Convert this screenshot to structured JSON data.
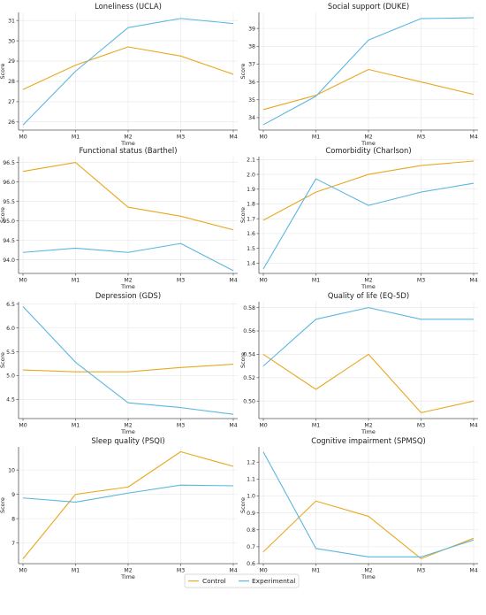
{
  "chart_data": [
    {
      "type": "line",
      "title": "Loneliness (UCLA)",
      "xlabel": "Time",
      "ylabel": "Score",
      "categories": [
        "M0",
        "M1",
        "M2",
        "M3",
        "M4"
      ],
      "ylim": [
        25.6,
        31.4
      ],
      "yticks": [
        26,
        27,
        28,
        29,
        30,
        31
      ],
      "tick_labels": [
        "26",
        "27",
        "28",
        "29",
        "30",
        "31"
      ],
      "series": [
        {
          "name": "Control",
          "values": [
            27.6,
            28.8,
            29.7,
            29.25,
            28.35
          ]
        },
        {
          "name": "Experimental",
          "values": [
            25.85,
            28.5,
            30.65,
            31.1,
            30.85
          ]
        }
      ]
    },
    {
      "type": "line",
      "title": "Social support (DUKE)",
      "xlabel": "Time",
      "ylabel": "Score",
      "categories": [
        "M0",
        "M1",
        "M2",
        "M3",
        "M4"
      ],
      "ylim": [
        33.3,
        39.9
      ],
      "yticks": [
        34,
        35,
        36,
        37,
        38,
        39
      ],
      "tick_labels": [
        "34",
        "35",
        "36",
        "37",
        "38",
        "39"
      ],
      "series": [
        {
          "name": "Control",
          "values": [
            34.45,
            35.25,
            36.7,
            36.0,
            35.3
          ]
        },
        {
          "name": "Experimental",
          "values": [
            33.6,
            35.2,
            38.35,
            39.55,
            39.6
          ]
        }
      ]
    },
    {
      "type": "line",
      "title": "Functional status (Barthel)",
      "xlabel": "Time",
      "ylabel": "Score",
      "categories": [
        "M0",
        "M1",
        "M2",
        "M3",
        "M4"
      ],
      "ylim": [
        93.65,
        96.65
      ],
      "yticks": [
        94.0,
        94.5,
        95.0,
        95.5,
        96.0,
        96.5
      ],
      "tick_labels": [
        "94.0",
        "94.5",
        "95.0",
        "95.5",
        "96.0",
        "96.5"
      ],
      "series": [
        {
          "name": "Control",
          "values": [
            96.27,
            96.5,
            95.35,
            95.12,
            94.77
          ]
        },
        {
          "name": "Experimental",
          "values": [
            94.19,
            94.3,
            94.19,
            94.42,
            93.72
          ]
        }
      ]
    },
    {
      "type": "line",
      "title": "Comorbidity (Charlson)",
      "xlabel": "Time",
      "ylabel": "Score",
      "categories": [
        "M0",
        "M1",
        "M2",
        "M3",
        "M4"
      ],
      "ylim": [
        1.33,
        2.12
      ],
      "yticks": [
        1.4,
        1.5,
        1.6,
        1.7,
        1.8,
        1.9,
        2.0,
        2.1
      ],
      "tick_labels": [
        "1.4",
        "1.5",
        "1.6",
        "1.7",
        "1.8",
        "1.9",
        "2.0",
        "2.1"
      ],
      "series": [
        {
          "name": "Control",
          "values": [
            1.69,
            1.88,
            2.0,
            2.06,
            2.09
          ]
        },
        {
          "name": "Experimental",
          "values": [
            1.36,
            1.97,
            1.79,
            1.88,
            1.94
          ]
        }
      ]
    },
    {
      "type": "line",
      "title": "Depression (GDS)",
      "xlabel": "Time",
      "ylabel": "Score",
      "categories": [
        "M0",
        "M1",
        "M2",
        "M3",
        "M4"
      ],
      "ylim": [
        4.1,
        6.55
      ],
      "yticks": [
        4.5,
        5.0,
        5.5,
        6.0,
        6.5
      ],
      "tick_labels": [
        "4.5",
        "5.0",
        "5.5",
        "6.0",
        "6.5"
      ],
      "series": [
        {
          "name": "Control",
          "values": [
            5.12,
            5.08,
            5.08,
            5.17,
            5.24
          ]
        },
        {
          "name": "Experimental",
          "values": [
            6.45,
            5.28,
            4.43,
            4.33,
            4.19
          ]
        }
      ]
    },
    {
      "type": "line",
      "title": "Quality of life (EQ-5D)",
      "xlabel": "Time",
      "ylabel": "Score",
      "categories": [
        "M0",
        "M1",
        "M2",
        "M3",
        "M4"
      ],
      "ylim": [
        0.485,
        0.585
      ],
      "yticks": [
        0.5,
        0.52,
        0.54,
        0.56,
        0.58
      ],
      "tick_labels": [
        "0.50",
        "0.52",
        "0.54",
        "0.56",
        "0.58"
      ],
      "series": [
        {
          "name": "Control",
          "values": [
            0.54,
            0.51,
            0.54,
            0.49,
            0.5
          ]
        },
        {
          "name": "Experimental",
          "values": [
            0.53,
            0.57,
            0.58,
            0.57,
            0.57
          ]
        }
      ]
    },
    {
      "type": "line",
      "title": "Sleep quality (PSQI)",
      "xlabel": "Time",
      "ylabel": "Score",
      "categories": [
        "M0",
        "M1",
        "M2",
        "M3",
        "M4"
      ],
      "ylim": [
        6.15,
        10.95
      ],
      "yticks": [
        7,
        8,
        9,
        10
      ],
      "tick_labels": [
        "7",
        "8",
        "9",
        "10"
      ],
      "series": [
        {
          "name": "Control",
          "values": [
            6.35,
            9.0,
            9.3,
            10.75,
            10.15
          ]
        },
        {
          "name": "Experimental",
          "values": [
            8.85,
            8.68,
            9.05,
            9.38,
            9.35
          ]
        }
      ]
    },
    {
      "type": "line",
      "title": "Cognitive impairment (SPMSQ)",
      "xlabel": "Time",
      "ylabel": "Score",
      "categories": [
        "M0",
        "M1",
        "M2",
        "M3",
        "M4"
      ],
      "ylim": [
        0.6,
        1.29
      ],
      "yticks": [
        0.6,
        0.7,
        0.8,
        0.9,
        1.0,
        1.1,
        1.2
      ],
      "tick_labels": [
        "0.6",
        "0.7",
        "0.8",
        "0.9",
        "1.0",
        "1.1",
        "1.2"
      ],
      "series": [
        {
          "name": "Control",
          "values": [
            0.67,
            0.97,
            0.88,
            0.63,
            0.75
          ]
        },
        {
          "name": "Experimental",
          "values": [
            1.26,
            0.69,
            0.64,
            0.64,
            0.74
          ]
        }
      ]
    }
  ],
  "legend": {
    "placement": "bottom-center",
    "items": [
      "Control",
      "Experimental"
    ]
  },
  "colors": {
    "Control": "#e8a820",
    "Experimental": "#5ab6e0",
    "grid": "#e6e6e6",
    "axis": "#555555"
  },
  "grid": true
}
